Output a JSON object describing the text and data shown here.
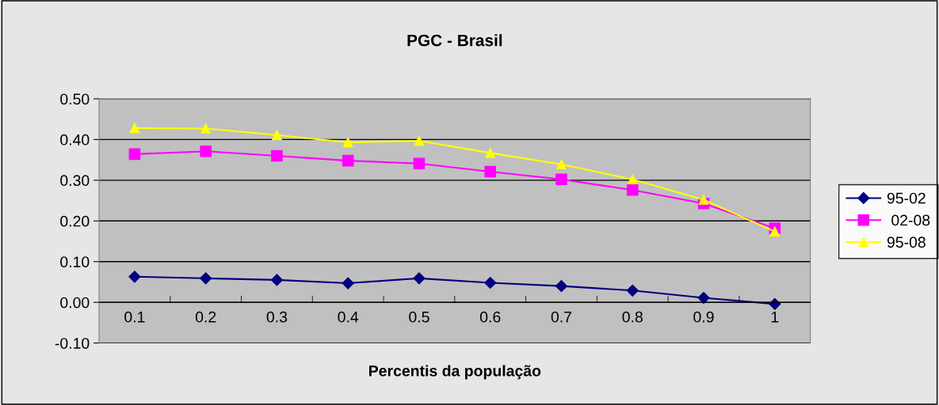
{
  "chart_data": {
    "type": "line",
    "title": "PGC - Brasil",
    "xlabel": "Percentis da população",
    "categories": [
      "0.1",
      "0.2",
      "0.3",
      "0.4",
      "0.5",
      "0.6",
      "0.7",
      "0.8",
      "0.9",
      "1"
    ],
    "series": [
      {
        "name": "95-02",
        "color": "#000080",
        "marker": "diamond",
        "values": [
          0.063,
          0.059,
          0.055,
          0.047,
          0.059,
          0.048,
          0.04,
          0.029,
          0.011,
          -0.004
        ]
      },
      {
        "name": " 02-08",
        "color": "#ff00ff",
        "marker": "square",
        "values": [
          0.364,
          0.371,
          0.36,
          0.348,
          0.341,
          0.321,
          0.302,
          0.276,
          0.243,
          0.182
        ]
      },
      {
        "name": "95-08",
        "color": "#ffff00",
        "marker": "triangle",
        "values": [
          0.428,
          0.427,
          0.411,
          0.393,
          0.397,
          0.367,
          0.339,
          0.302,
          0.252,
          0.174
        ]
      }
    ],
    "ylim": [
      -0.1,
      0.5
    ],
    "yticks": [
      {
        "value": -0.1,
        "label": "-0.10"
      },
      {
        "value": 0,
        "label": "0.00"
      },
      {
        "value": 0.1,
        "label": "0.10"
      },
      {
        "value": 0.2,
        "label": "0.20"
      },
      {
        "value": 0.3,
        "label": "0.30"
      },
      {
        "value": 0.4,
        "label": "0.40"
      },
      {
        "value": 0.5,
        "label": "0.50"
      }
    ],
    "grid": "y",
    "legend": "right",
    "line_style": "solid"
  }
}
